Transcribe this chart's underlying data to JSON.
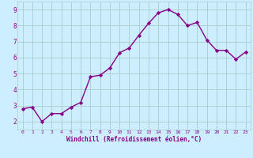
{
  "x": [
    0,
    1,
    2,
    3,
    4,
    5,
    6,
    7,
    8,
    9,
    10,
    11,
    12,
    13,
    14,
    15,
    16,
    17,
    18,
    19,
    20,
    21,
    22,
    23
  ],
  "y": [
    2.8,
    2.9,
    2.0,
    2.5,
    2.5,
    2.9,
    3.2,
    4.8,
    4.9,
    5.35,
    6.3,
    6.6,
    7.4,
    8.15,
    8.8,
    9.0,
    8.7,
    8.0,
    8.2,
    7.1,
    6.45,
    6.45,
    5.9,
    6.35
  ],
  "line_color": "#880088",
  "marker": "D",
  "marker_size": 2.2,
  "bg_color": "#cceeff",
  "grid_color": "#aacccc",
  "xlabel": "Windchill (Refroidissement éolien,°C)",
  "ylabel_ticks": [
    2,
    3,
    4,
    5,
    6,
    7,
    8,
    9
  ],
  "xlim": [
    -0.5,
    23.5
  ],
  "ylim": [
    1.5,
    9.5
  ],
  "xticks": [
    0,
    1,
    2,
    3,
    4,
    5,
    6,
    7,
    8,
    9,
    10,
    11,
    12,
    13,
    14,
    15,
    16,
    17,
    18,
    19,
    20,
    21,
    22,
    23
  ],
  "axis_label_color": "#880088",
  "tick_label_color": "#880088",
  "line_width": 1.0,
  "xtick_fontsize": 4.5,
  "ytick_fontsize": 5.5,
  "xlabel_fontsize": 5.5
}
